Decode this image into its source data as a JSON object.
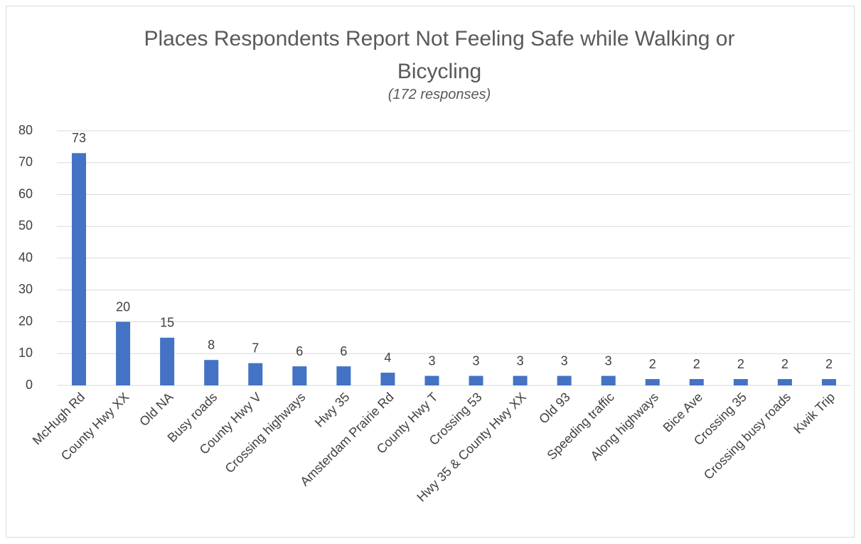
{
  "chart_data": {
    "type": "bar",
    "title": "Places Respondents Report Not Feeling Safe while Walking or Bicycling",
    "subtitle": "(172 responses)",
    "categories": [
      "McHugh Rd",
      "County Hwy XX",
      "Old NA",
      "Busy roads",
      "County Hwy V",
      "Crossing highways",
      "Hwy 35",
      "Amsterdam Prairie Rd",
      "County Hwy T",
      "Crossing 53",
      "Hwy 35 & County Hwy XX",
      "Old 93",
      "Speeding traffic",
      "Along highways",
      "Bice Ave",
      "Crossing 35",
      "Crossing busy roads",
      "Kwik Trip"
    ],
    "values": [
      73,
      20,
      15,
      8,
      7,
      6,
      6,
      4,
      3,
      3,
      3,
      3,
      3,
      2,
      2,
      2,
      2,
      2
    ],
    "color": "#4472c4",
    "ylim": [
      0,
      80
    ],
    "yticks": [
      0,
      10,
      20,
      30,
      40,
      50,
      60,
      70,
      80
    ],
    "grid": true
  }
}
